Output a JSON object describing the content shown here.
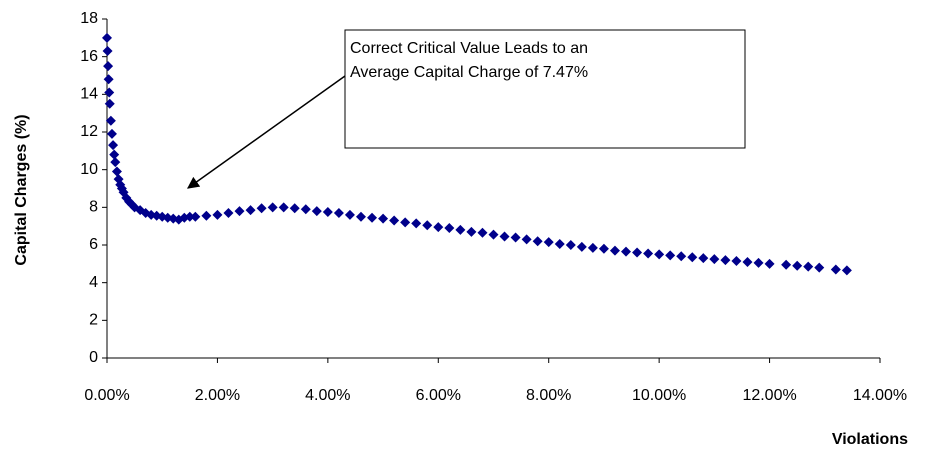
{
  "chart_data": {
    "type": "scatter",
    "x_label": "Violations",
    "y_label": "Capital Charges (%)",
    "annotation": {
      "lines": [
        "Correct Critical Value Leads to an",
        "Average Capital Charge of 7.47%"
      ]
    },
    "xlim": [
      0,
      14
    ],
    "xticks": [
      {
        "value": 0,
        "label": "0.00%"
      },
      {
        "value": 2,
        "label": "2.00%"
      },
      {
        "value": 4,
        "label": "4.00%"
      },
      {
        "value": 6,
        "label": "6.00%"
      },
      {
        "value": 8,
        "label": "8.00%"
      },
      {
        "value": 10,
        "label": "10.00%"
      },
      {
        "value": 12,
        "label": "12.00%"
      },
      {
        "value": 14,
        "label": "14.00%"
      }
    ],
    "ylim": [
      0,
      18
    ],
    "yticks": [
      0,
      2,
      4,
      6,
      8,
      10,
      12,
      14,
      16,
      18
    ],
    "grid": false,
    "color": "#00008b",
    "x": [
      0,
      0.01,
      0.02,
      0.03,
      0.04,
      0.05,
      0.07,
      0.09,
      0.11,
      0.13,
      0.15,
      0.18,
      0.21,
      0.24,
      0.27,
      0.3,
      0.35,
      0.4,
      0.45,
      0.5,
      0.6,
      0.7,
      0.8,
      0.9,
      1.0,
      1.1,
      1.2,
      1.3,
      1.4,
      1.5,
      1.6,
      1.8,
      2.0,
      2.2,
      2.4,
      2.6,
      2.8,
      3.0,
      3.2,
      3.4,
      3.6,
      3.8,
      4.0,
      4.2,
      4.4,
      4.6,
      4.8,
      5.0,
      5.2,
      5.4,
      5.6,
      5.8,
      6.0,
      6.2,
      6.4,
      6.6,
      6.8,
      7.0,
      7.2,
      7.4,
      7.6,
      7.8,
      8.0,
      8.2,
      8.4,
      8.6,
      8.8,
      9.0,
      9.2,
      9.4,
      9.6,
      9.8,
      10.0,
      10.2,
      10.4,
      10.6,
      10.8,
      11.0,
      11.2,
      11.4,
      11.6,
      11.8,
      12.0,
      12.3,
      12.5,
      12.7,
      12.9,
      13.2,
      13.4
    ],
    "values": [
      17,
      16.3,
      15.5,
      14.8,
      14.1,
      13.5,
      12.6,
      11.9,
      11.3,
      10.8,
      10.4,
      9.9,
      9.5,
      9.2,
      9.0,
      8.8,
      8.5,
      8.3,
      8.15,
      8.0,
      7.85,
      7.7,
      7.6,
      7.55,
      7.5,
      7.45,
      7.4,
      7.35,
      7.45,
      7.5,
      7.5,
      7.55,
      7.6,
      7.7,
      7.8,
      7.85,
      7.95,
      8.0,
      8.0,
      7.95,
      7.9,
      7.8,
      7.75,
      7.7,
      7.6,
      7.5,
      7.45,
      7.4,
      7.3,
      7.2,
      7.15,
      7.05,
      6.95,
      6.9,
      6.8,
      6.7,
      6.65,
      6.55,
      6.45,
      6.4,
      6.3,
      6.2,
      6.15,
      6.05,
      6.0,
      5.9,
      5.85,
      5.8,
      5.7,
      5.65,
      5.6,
      5.55,
      5.5,
      5.45,
      5.4,
      5.35,
      5.3,
      5.25,
      5.2,
      5.15,
      5.1,
      5.05,
      5.0,
      4.95,
      4.9,
      4.85,
      4.8,
      4.7,
      4.65
    ]
  }
}
